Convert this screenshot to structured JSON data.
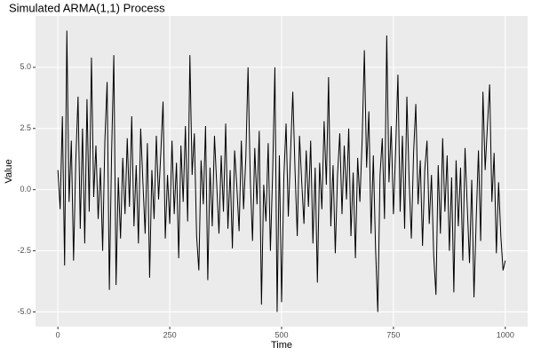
{
  "chart_data": {
    "type": "line",
    "title": "Simulated ARMA(1,1) Process",
    "x_label": "Time",
    "y_label": "Value",
    "x": [
      0,
      5,
      10,
      15,
      20,
      25,
      30,
      35,
      40,
      45,
      50,
      55,
      60,
      65,
      70,
      75,
      80,
      85,
      90,
      95,
      100,
      105,
      110,
      115,
      120,
      125,
      130,
      135,
      140,
      145,
      150,
      155,
      160,
      165,
      170,
      175,
      180,
      185,
      190,
      195,
      200,
      205,
      210,
      215,
      220,
      225,
      230,
      235,
      240,
      245,
      250,
      255,
      260,
      265,
      270,
      275,
      280,
      285,
      290,
      295,
      300,
      305,
      310,
      315,
      320,
      325,
      330,
      335,
      340,
      345,
      350,
      355,
      360,
      365,
      370,
      375,
      380,
      385,
      390,
      395,
      400,
      405,
      410,
      415,
      420,
      425,
      430,
      435,
      440,
      445,
      450,
      455,
      460,
      465,
      470,
      475,
      480,
      485,
      490,
      495,
      500,
      505,
      510,
      515,
      520,
      525,
      530,
      535,
      540,
      545,
      550,
      555,
      560,
      565,
      570,
      575,
      580,
      585,
      590,
      595,
      600,
      605,
      610,
      615,
      620,
      625,
      630,
      635,
      640,
      645,
      650,
      655,
      660,
      665,
      670,
      675,
      680,
      685,
      690,
      695,
      700,
      705,
      710,
      715,
      720,
      725,
      730,
      735,
      740,
      745,
      750,
      755,
      760,
      765,
      770,
      775,
      780,
      785,
      790,
      795,
      800,
      805,
      810,
      815,
      820,
      825,
      830,
      835,
      840,
      845,
      850,
      855,
      860,
      865,
      870,
      875,
      880,
      885,
      890,
      895,
      900,
      905,
      910,
      915,
      920,
      925,
      930,
      935,
      940,
      945,
      950,
      955,
      960,
      965,
      970,
      975,
      980,
      985,
      990,
      995,
      1000
    ],
    "series": [
      {
        "name": "Value",
        "color": "#000000",
        "values": [
          0.8,
          -0.8,
          3.0,
          -3.1,
          6.5,
          -0.5,
          2.0,
          -2.9,
          1.2,
          3.8,
          -1.6,
          2.5,
          -2.2,
          3.7,
          -0.9,
          5.4,
          -0.3,
          1.8,
          -1.2,
          0.9,
          -2.5,
          2.0,
          4.4,
          -4.1,
          1.5,
          5.5,
          -3.9,
          0.5,
          -2.0,
          1.3,
          -1.0,
          2.1,
          -0.7,
          3.0,
          -1.5,
          1.0,
          -2.2,
          2.5,
          0.3,
          -1.8,
          1.9,
          -3.6,
          0.8,
          -1.2,
          2.2,
          -0.4,
          1.5,
          3.6,
          -2.0,
          0.6,
          -1.4,
          2.0,
          -1.0,
          1.1,
          -2.8,
          1.8,
          -0.5,
          2.6,
          -1.3,
          5.5,
          0.6,
          2.3,
          -1.9,
          -3.3,
          1.2,
          -0.6,
          2.6,
          -3.7,
          0.9,
          -1.5,
          2.2,
          0.2,
          -1.8,
          1.4,
          -0.9,
          2.7,
          -1.6,
          0.8,
          -2.4,
          1.6,
          0.1,
          -1.7,
          2.0,
          -0.8,
          1.3,
          5.0,
          0.4,
          -2.1,
          1.7,
          -0.6,
          2.4,
          -4.7,
          0.2,
          -1.3,
          1.9,
          -2.5,
          0.7,
          5.0,
          -5.0,
          1.4,
          -4.6,
          0.5,
          2.7,
          -1.1,
          1.5,
          4.0,
          0.8,
          -1.9,
          2.2,
          0.3,
          -1.4,
          1.6,
          -0.7,
          2.0,
          -2.2,
          0.9,
          -3.8,
          1.1,
          -0.8,
          2.8,
          0.2,
          4.6,
          -1.5,
          1.0,
          -2.6,
          0.6,
          2.3,
          -1.0,
          1.8,
          -0.4,
          2.5,
          -1.9,
          0.7,
          -2.8,
          1.3,
          -0.5,
          2.0,
          5.7,
          0.9,
          3.2,
          -1.8,
          1.4,
          -2.4,
          -5.0,
          0.6,
          2.1,
          -1.2,
          6.3,
          0.3,
          2.6,
          -1.0,
          1.7,
          4.7,
          -0.9,
          2.2,
          -1.6,
          3.8,
          0.4,
          -2.0,
          1.5,
          3.5,
          -0.6,
          1.2,
          -2.3,
          0.8,
          2.0,
          -1.4,
          0.6,
          -2.7,
          -4.3,
          1.0,
          -1.8,
          2.1,
          -0.9,
          1.4,
          -2.5,
          0.5,
          -4.2,
          1.2,
          -1.5,
          0.9,
          -2.9,
          1.7,
          -0.7,
          -3.0,
          0.4,
          -4.4,
          -1.2,
          1.6,
          -2.1,
          4.0,
          0.8,
          2.6,
          4.3,
          -0.5,
          1.5,
          -2.6,
          0.3,
          -1.9,
          -3.3,
          -2.9
        ]
      }
    ],
    "xlim": [
      -50,
      1050
    ],
    "ylim": [
      -5.6,
      7.1
    ],
    "xticks": [
      0,
      250,
      500,
      750,
      1000
    ],
    "yticks": [
      {
        "value": -5,
        "label": "-5.0"
      },
      {
        "value": -2.5,
        "label": "-2.5"
      },
      {
        "value": 0,
        "label": "0.0"
      },
      {
        "value": 2.5,
        "label": "2.5"
      },
      {
        "value": 5,
        "label": "5.0"
      }
    ],
    "grid": true
  }
}
